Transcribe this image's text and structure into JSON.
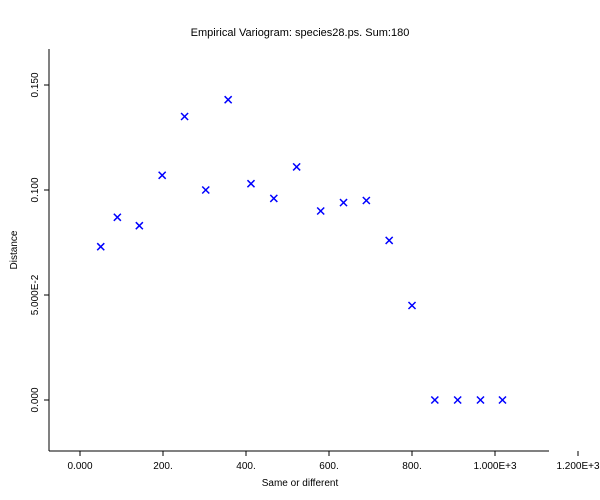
{
  "chart_data": {
    "type": "scatter",
    "title": "Empirical Variogram: species28.ps. Sum:180",
    "xlabel": "Same or different",
    "ylabel": "Distance",
    "xlim": [
      -70,
      1130
    ],
    "ylim": [
      -0.024,
      0.167
    ],
    "grid": false,
    "marker": "x",
    "marker_color": "#0000ff",
    "x_ticks": [
      {
        "value": 0,
        "label": "0.000"
      },
      {
        "value": 200,
        "label": "200."
      },
      {
        "value": 400,
        "label": "400."
      },
      {
        "value": 600,
        "label": "600."
      },
      {
        "value": 800,
        "label": "800."
      },
      {
        "value": 1000,
        "label": "1.000E+3"
      },
      {
        "value": 1200,
        "label": "1.200E+3"
      }
    ],
    "y_ticks": [
      {
        "value": 0,
        "label": "0.000"
      },
      {
        "value": 0.05,
        "label": "5.000E-2"
      },
      {
        "value": 0.1,
        "label": "0.100"
      },
      {
        "value": 0.15,
        "label": "0.150"
      }
    ],
    "series": [
      {
        "points": [
          [
            50,
            0.073
          ],
          [
            90,
            0.087
          ],
          [
            143,
            0.083
          ],
          [
            198,
            0.107
          ],
          [
            252,
            0.135
          ],
          [
            303,
            0.1
          ],
          [
            357,
            0.143
          ],
          [
            412,
            0.103
          ],
          [
            467,
            0.096
          ],
          [
            522,
            0.111
          ],
          [
            580,
            0.09
          ],
          [
            635,
            0.094
          ],
          [
            690,
            0.095
          ],
          [
            745,
            0.076
          ],
          [
            800,
            0.045
          ],
          [
            855,
            0.0
          ],
          [
            910,
            0.0
          ],
          [
            965,
            0.0
          ],
          [
            1018,
            0.0
          ]
        ]
      }
    ]
  }
}
